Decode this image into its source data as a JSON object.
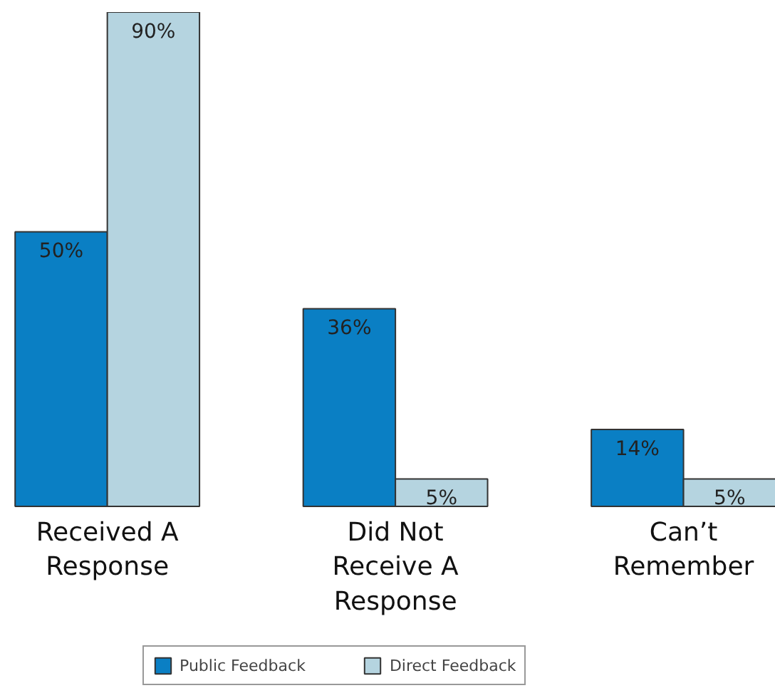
{
  "chart_data": {
    "type": "bar",
    "categories": [
      "Received A Response",
      "Did Not Receive A Response",
      "Can’t Remember"
    ],
    "series": [
      {
        "name": "Public Feedback",
        "color": "#0a7fc4",
        "values": [
          50,
          36,
          14
        ],
        "value_labels": [
          "50%",
          "36%",
          "14%"
        ]
      },
      {
        "name": "Direct Feedback",
        "color": "#b5d4e0",
        "values": [
          90,
          5,
          5
        ],
        "value_labels": [
          "90%",
          "5%",
          "5%"
        ]
      }
    ],
    "legend": "bottom"
  }
}
